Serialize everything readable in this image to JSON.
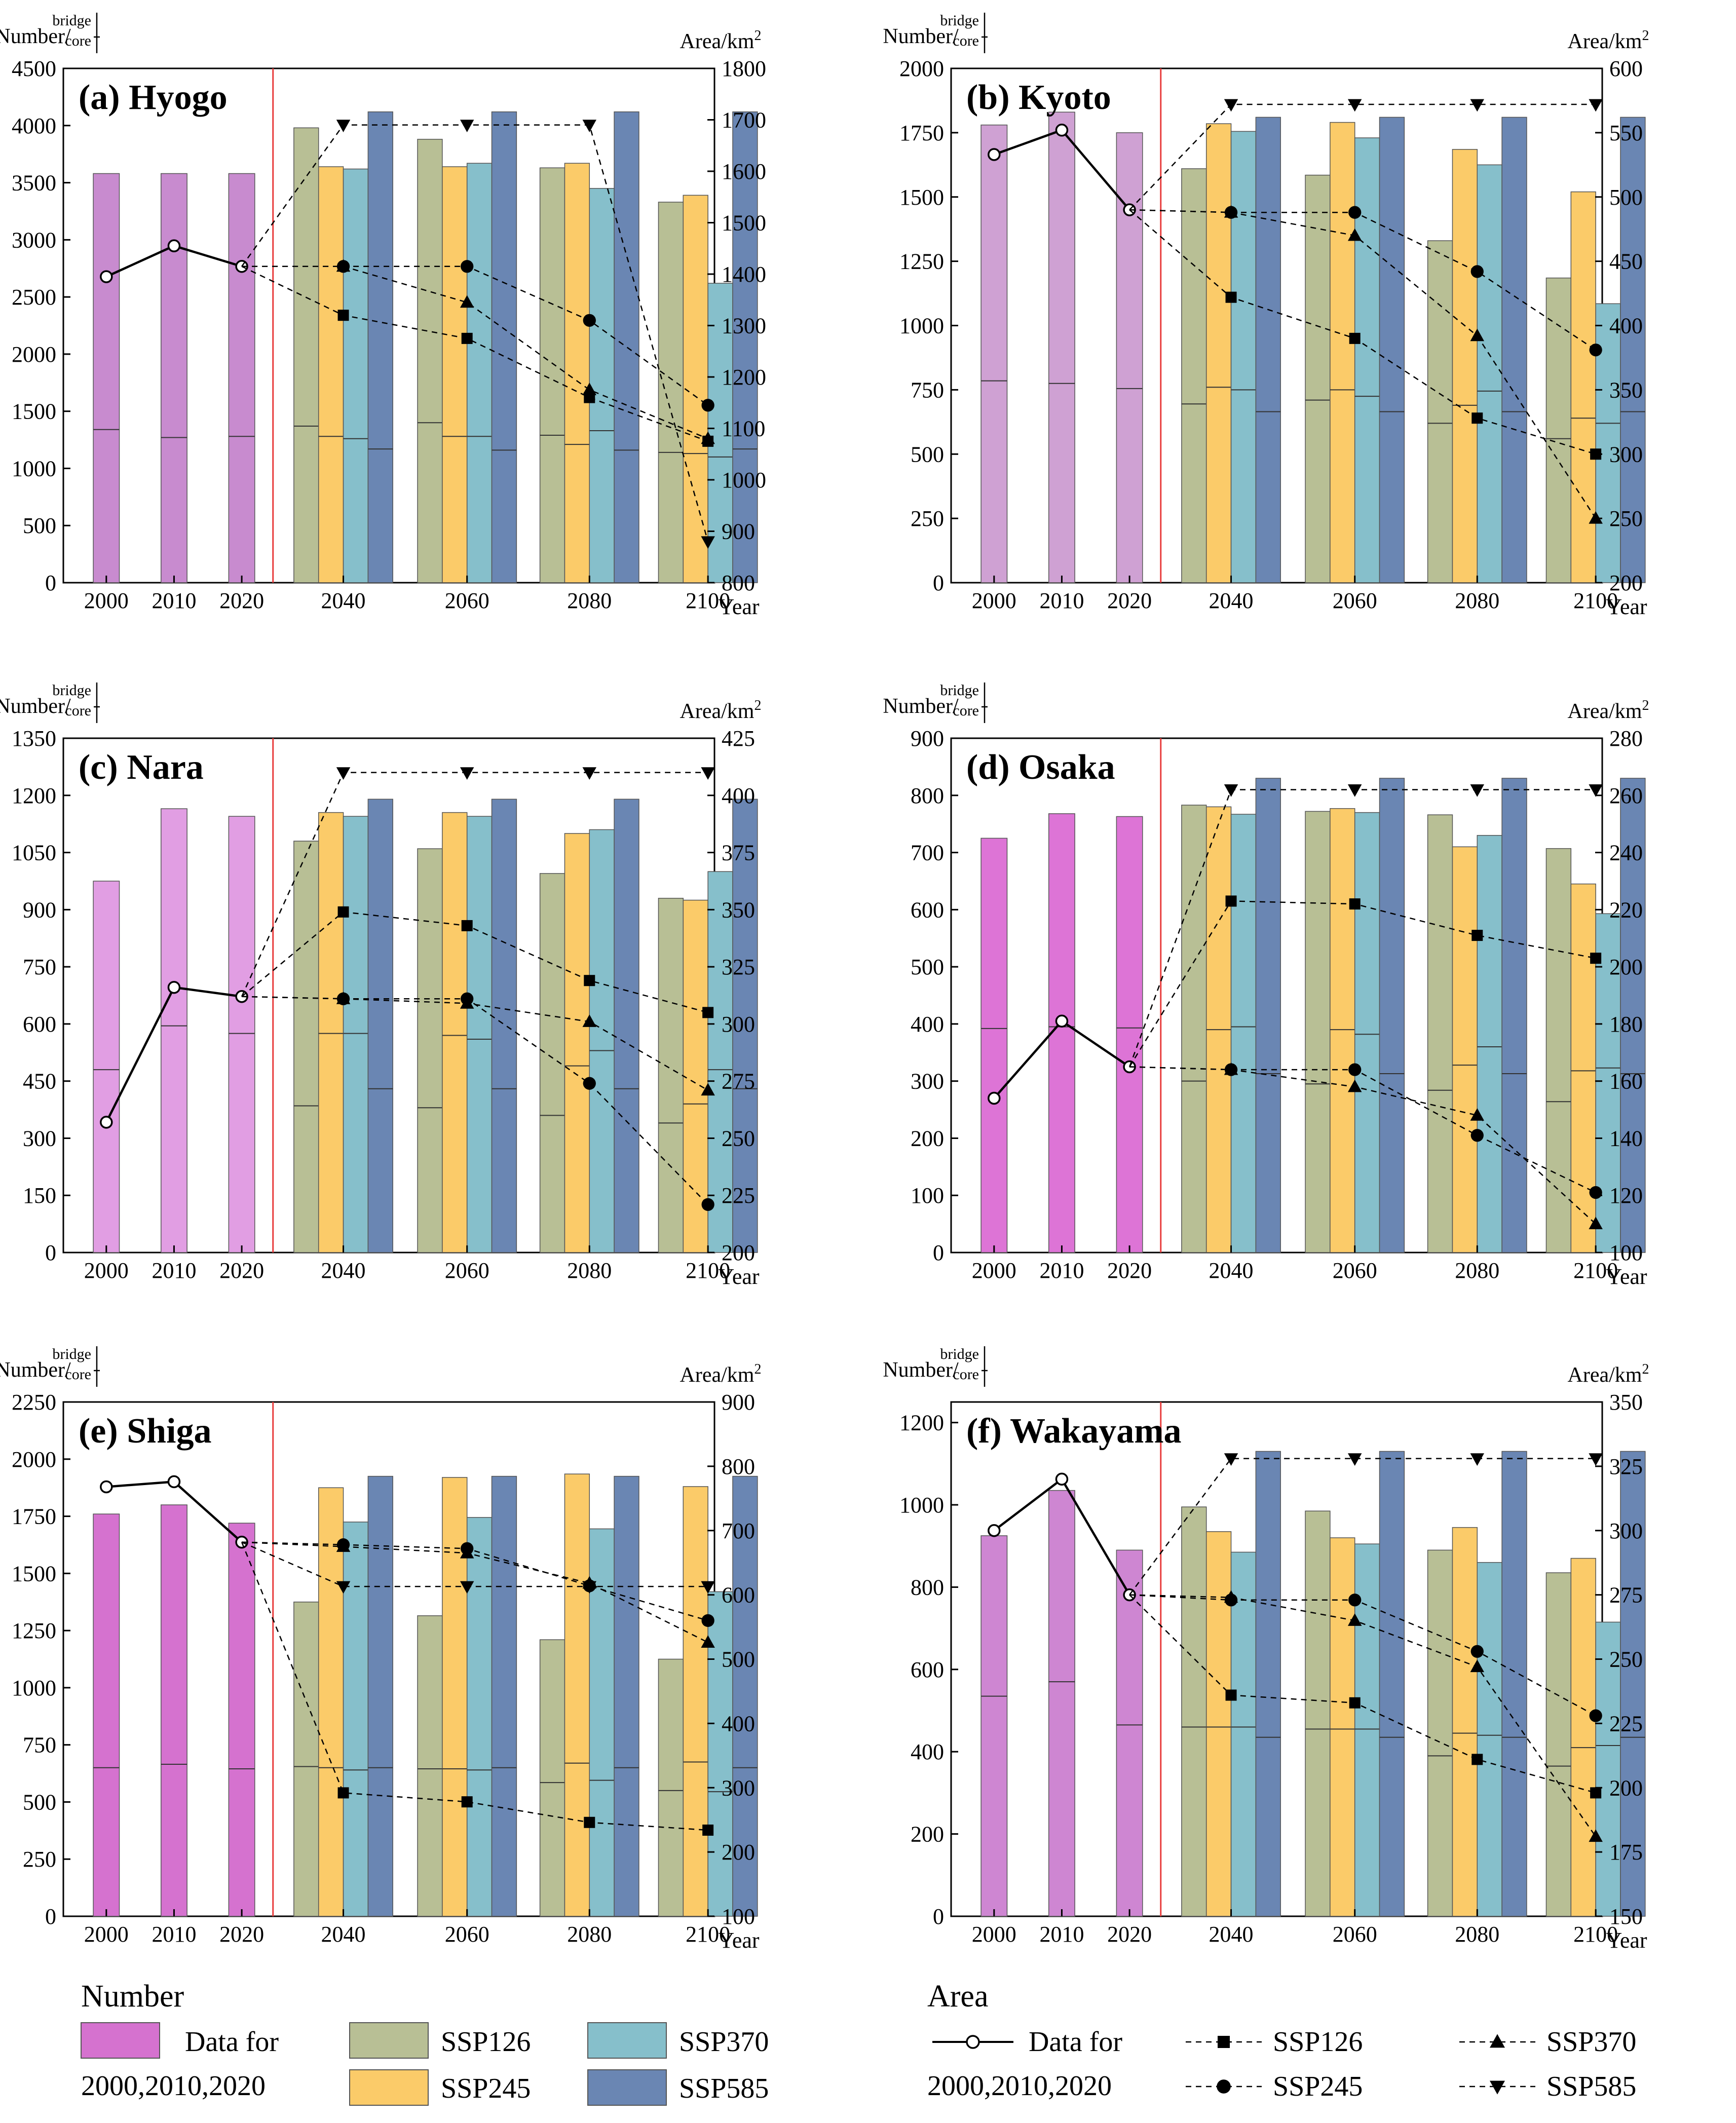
{
  "figure": {
    "y_label_left": "Number/",
    "key_top": "bridge",
    "key_bottom": "core",
    "y_label_right": "Area/km",
    "y_label_right_sup": "2",
    "x_label": "Year",
    "legend": {
      "number_title": "Number",
      "area_title": "Area",
      "historical_line1": "Data for",
      "historical_line2": "2000,2010,2020",
      "ssp126": "SSP126",
      "ssp245": "SSP245",
      "ssp370": "SSP370",
      "ssp585": "SSP585"
    },
    "colors": {
      "ssp126": "#b8bf95",
      "ssp245": "#fbcb69",
      "ssp370": "#86bfcb",
      "ssp585": "#6a86b3",
      "divider": "#e83c3c"
    }
  },
  "chart_data": [
    {
      "type": "bar",
      "title": "(a) Hyogo",
      "hist_color": "#c88bcf",
      "categories": [
        "2000",
        "2010",
        "2020",
        "2040",
        "2060",
        "2080",
        "2100"
      ],
      "ylim": [
        0,
        4500
      ],
      "yticks": [
        0,
        500,
        1000,
        1500,
        2000,
        2500,
        3000,
        3500,
        4000,
        4500
      ],
      "y2lim": [
        800,
        1800
      ],
      "y2ticks": [
        800,
        900,
        1000,
        1100,
        1200,
        1300,
        1400,
        1500,
        1600,
        1700,
        1800
      ],
      "hist_bridge": [
        3580,
        3580,
        3580
      ],
      "hist_core": [
        1340,
        1270,
        1280
      ],
      "hist_area": [
        1395,
        1455,
        1415
      ],
      "series": [
        {
          "name": "SSP126",
          "bridge": [
            3980,
            3880,
            3630,
            3330
          ],
          "core": [
            1370,
            1400,
            1290,
            1140
          ],
          "area": [
            1320,
            1275,
            1160,
            1075
          ]
        },
        {
          "name": "SSP245",
          "bridge": [
            3640,
            3640,
            3670,
            3390
          ],
          "core": [
            1280,
            1280,
            1210,
            1130
          ],
          "area": [
            1415,
            1415,
            1310,
            1145
          ]
        },
        {
          "name": "SSP370",
          "bridge": [
            3620,
            3670,
            3450,
            2620
          ],
          "core": [
            1260,
            1280,
            1330,
            1100
          ],
          "area": [
            1415,
            1345,
            1175,
            1080
          ]
        },
        {
          "name": "SSP585",
          "bridge": [
            4120,
            4120,
            4120,
            4120
          ],
          "core": [
            1170,
            1160,
            1160,
            1170
          ],
          "area": [
            1690,
            1690,
            1690,
            880
          ]
        }
      ]
    },
    {
      "type": "bar",
      "title": "(b) Kyoto",
      "hist_color": "#cfa1d3",
      "categories": [
        "2000",
        "2010",
        "2020",
        "2040",
        "2060",
        "2080",
        "2100"
      ],
      "ylim": [
        0,
        2000
      ],
      "yticks": [
        0,
        250,
        500,
        750,
        1000,
        1250,
        1500,
        1750,
        2000
      ],
      "y2lim": [
        200,
        600
      ],
      "y2ticks": [
        200,
        250,
        300,
        350,
        400,
        450,
        500,
        550,
        600
      ],
      "hist_bridge": [
        1780,
        1830,
        1750
      ],
      "hist_core": [
        785,
        775,
        755
      ],
      "hist_area": [
        533,
        552,
        490
      ],
      "series": [
        {
          "name": "SSP126",
          "bridge": [
            1610,
            1585,
            1330,
            1185
          ],
          "core": [
            695,
            710,
            620,
            560
          ],
          "area": [
            422,
            390,
            328,
            300
          ]
        },
        {
          "name": "SSP245",
          "bridge": [
            1785,
            1790,
            1685,
            1520
          ],
          "core": [
            760,
            750,
            690,
            640
          ],
          "area": [
            488,
            488,
            442,
            381
          ]
        },
        {
          "name": "SSP370",
          "bridge": [
            1755,
            1730,
            1625,
            1085
          ],
          "core": [
            750,
            725,
            745,
            620
          ],
          "area": [
            488,
            470,
            392,
            250
          ]
        },
        {
          "name": "SSP585",
          "bridge": [
            1810,
            1810,
            1810,
            1810
          ],
          "core": [
            665,
            665,
            665,
            665
          ],
          "area": [
            572,
            572,
            572,
            572
          ]
        }
      ]
    },
    {
      "type": "bar",
      "title": "(c) Nara",
      "hist_color": "#e19ee3",
      "categories": [
        "2000",
        "2010",
        "2020",
        "2040",
        "2060",
        "2080",
        "2100"
      ],
      "ylim": [
        0,
        1350
      ],
      "yticks": [
        0,
        150,
        300,
        450,
        600,
        750,
        900,
        1050,
        1200,
        1350
      ],
      "y2lim": [
        200,
        425
      ],
      "y2ticks": [
        200,
        225,
        250,
        275,
        300,
        325,
        350,
        375,
        400,
        425
      ],
      "hist_bridge": [
        975,
        1165,
        1145
      ],
      "hist_core": [
        480,
        595,
        575
      ],
      "hist_area": [
        257,
        316,
        312
      ],
      "series": [
        {
          "name": "SSP126",
          "bridge": [
            1080,
            1060,
            995,
            930
          ],
          "core": [
            385,
            380,
            360,
            340
          ],
          "area": [
            349,
            343,
            319,
            305
          ]
        },
        {
          "name": "SSP245",
          "bridge": [
            1155,
            1155,
            1100,
            925
          ],
          "core": [
            575,
            570,
            490,
            390
          ],
          "area": [
            311,
            311,
            274,
            221
          ]
        },
        {
          "name": "SSP370",
          "bridge": [
            1145,
            1145,
            1110,
            1000
          ],
          "core": [
            575,
            560,
            530,
            480
          ],
          "area": [
            311,
            309,
            301,
            271
          ]
        },
        {
          "name": "SSP585",
          "bridge": [
            1190,
            1190,
            1190,
            1190
          ],
          "core": [
            430,
            430,
            430,
            430
          ],
          "area": [
            410,
            410,
            410,
            410
          ]
        }
      ]
    },
    {
      "type": "bar",
      "title": "(d) Osaka",
      "hist_color": "#dd74d6",
      "categories": [
        "2000",
        "2010",
        "2020",
        "2040",
        "2060",
        "2080",
        "2100"
      ],
      "ylim": [
        0,
        900
      ],
      "yticks": [
        0,
        100,
        200,
        300,
        400,
        500,
        600,
        700,
        800,
        900
      ],
      "y2lim": [
        100,
        280
      ],
      "y2ticks": [
        100,
        120,
        140,
        160,
        180,
        200,
        220,
        240,
        260,
        280
      ],
      "hist_bridge": [
        725,
        768,
        763
      ],
      "hist_core": [
        392,
        395,
        393
      ],
      "hist_area": [
        154,
        181,
        165
      ],
      "series": [
        {
          "name": "SSP126",
          "bridge": [
            783,
            772,
            766,
            707
          ],
          "core": [
            300,
            295,
            284,
            264
          ],
          "area": [
            223,
            222,
            211,
            203
          ]
        },
        {
          "name": "SSP245",
          "bridge": [
            780,
            777,
            710,
            645
          ],
          "core": [
            390,
            390,
            328,
            318
          ],
          "area": [
            164,
            164,
            141,
            121
          ]
        },
        {
          "name": "SSP370",
          "bridge": [
            767,
            770,
            730,
            593
          ],
          "core": [
            395,
            382,
            360,
            323
          ],
          "area": [
            164,
            158,
            148,
            110
          ]
        },
        {
          "name": "SSP585",
          "bridge": [
            830,
            830,
            830,
            830
          ],
          "core": [
            313,
            313,
            313,
            313
          ],
          "area": [
            262,
            262,
            262,
            262
          ]
        }
      ]
    },
    {
      "type": "bar",
      "title": "(e) Shiga",
      "hist_color": "#d572cf",
      "categories": [
        "2000",
        "2010",
        "2020",
        "2040",
        "2060",
        "2080",
        "2100"
      ],
      "ylim": [
        0,
        2250
      ],
      "yticks": [
        0,
        250,
        500,
        750,
        1000,
        1250,
        1500,
        1750,
        2000,
        2250
      ],
      "y2lim": [
        100,
        900
      ],
      "y2ticks": [
        100,
        200,
        300,
        400,
        500,
        600,
        700,
        800,
        900
      ],
      "hist_bridge": [
        1760,
        1800,
        1720
      ],
      "hist_core": [
        650,
        665,
        645
      ],
      "hist_area": [
        768,
        776,
        682
      ],
      "series": [
        {
          "name": "SSP126",
          "bridge": [
            1375,
            1315,
            1210,
            1125
          ],
          "core": [
            655,
            645,
            585,
            550
          ],
          "area": [
            292,
            278,
            246,
            234
          ]
        },
        {
          "name": "SSP245",
          "bridge": [
            1875,
            1920,
            1935,
            1880
          ],
          "core": [
            650,
            645,
            670,
            675
          ],
          "area": [
            678,
            672,
            614,
            560
          ]
        },
        {
          "name": "SSP370",
          "bridge": [
            1725,
            1745,
            1695,
            1420
          ],
          "core": [
            640,
            640,
            595,
            545
          ],
          "area": [
            675,
            665,
            618,
            526
          ]
        },
        {
          "name": "SSP585",
          "bridge": [
            1925,
            1925,
            1925,
            1925
          ],
          "core": [
            650,
            650,
            650,
            650
          ],
          "area": [
            613,
            613,
            613,
            613
          ]
        }
      ]
    },
    {
      "type": "bar",
      "title": "(f) Wakayama",
      "hist_color": "#ce86d2",
      "categories": [
        "2000",
        "2010",
        "2020",
        "2040",
        "2060",
        "2080",
        "2100"
      ],
      "ylim": [
        0,
        1250
      ],
      "yticks": [
        0,
        200,
        400,
        600,
        800,
        1000,
        1200
      ],
      "y2lim": [
        150,
        350
      ],
      "y2ticks": [
        150,
        175,
        200,
        225,
        250,
        275,
        300,
        325,
        350
      ],
      "hist_bridge": [
        925,
        1035,
        890
      ],
      "hist_core": [
        535,
        570,
        465
      ],
      "hist_area": [
        300,
        320,
        275
      ],
      "series": [
        {
          "name": "SSP126",
          "bridge": [
            995,
            985,
            890,
            835
          ],
          "core": [
            460,
            455,
            390,
            365
          ],
          "area": [
            236,
            233,
            211,
            198
          ]
        },
        {
          "name": "SSP245",
          "bridge": [
            935,
            920,
            945,
            870
          ],
          "core": [
            460,
            455,
            445,
            410
          ],
          "area": [
            273,
            273,
            253,
            228
          ]
        },
        {
          "name": "SSP370",
          "bridge": [
            885,
            905,
            860,
            715
          ],
          "core": [
            460,
            455,
            440,
            415
          ],
          "area": [
            274,
            265,
            247,
            181
          ]
        },
        {
          "name": "SSP585",
          "bridge": [
            1130,
            1130,
            1130,
            1130
          ],
          "core": [
            435,
            435,
            435,
            435
          ],
          "area": [
            328,
            328,
            328,
            328
          ]
        }
      ]
    }
  ]
}
